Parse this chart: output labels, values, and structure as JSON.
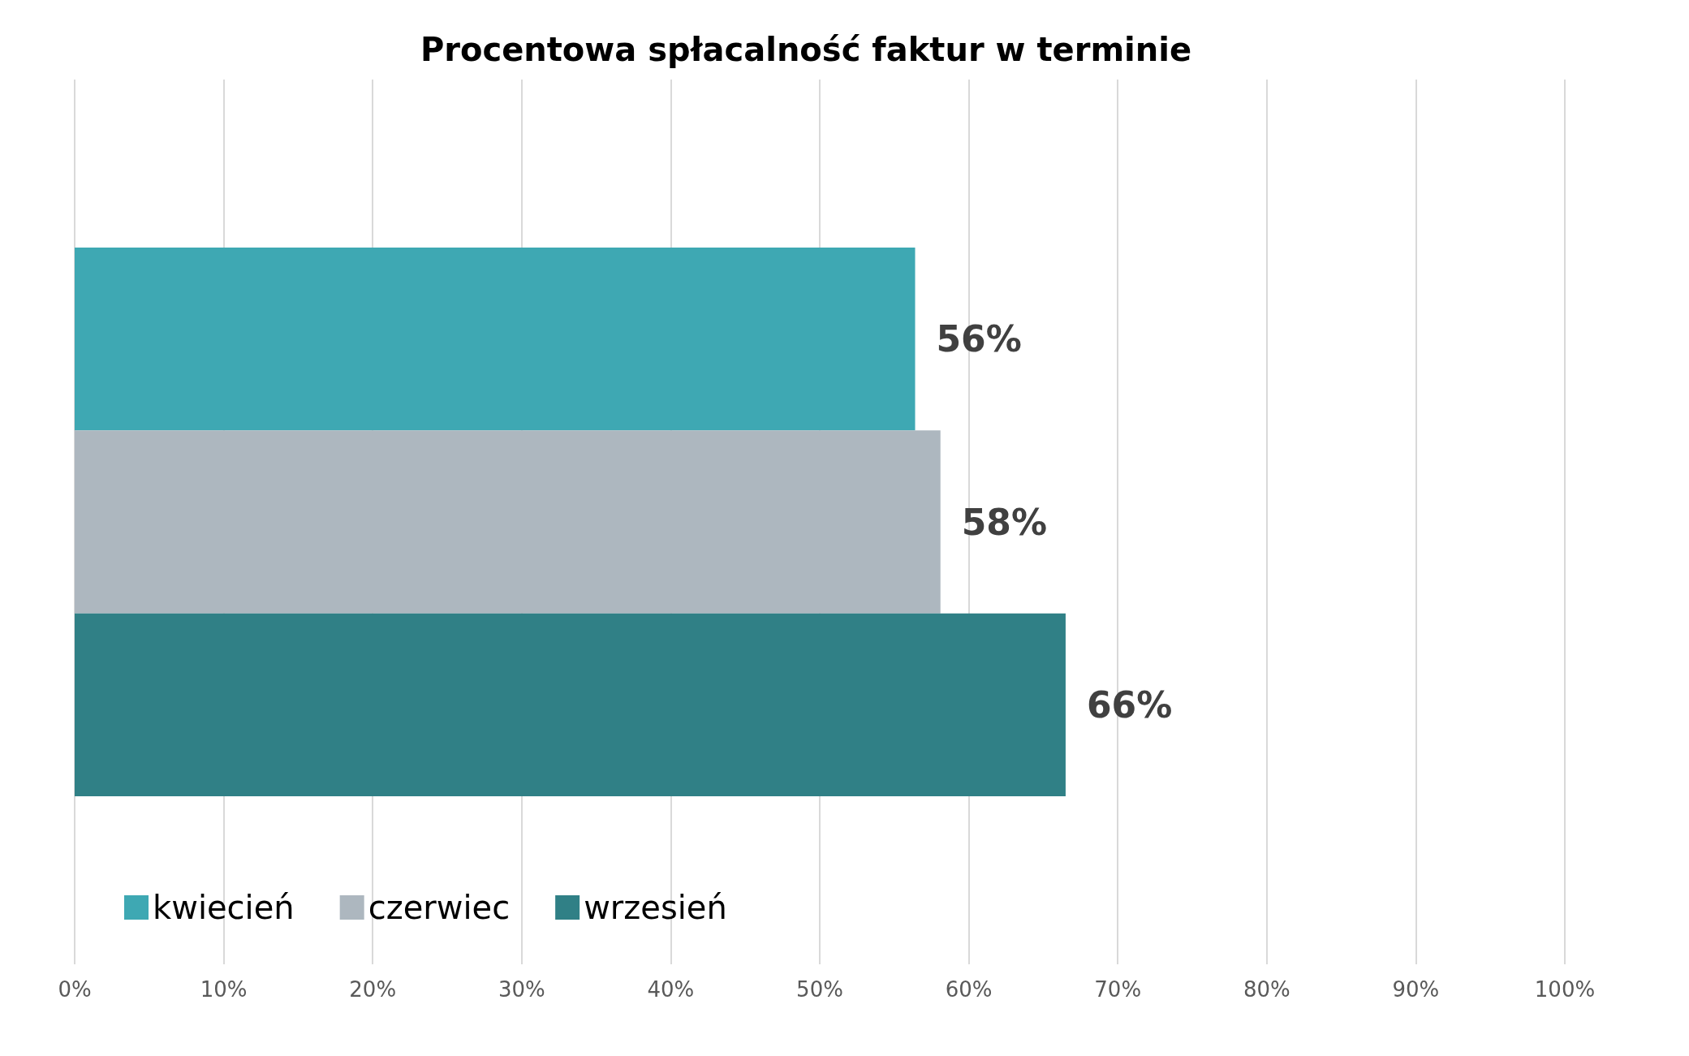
{
  "chart_data": {
    "type": "bar",
    "orientation": "horizontal",
    "title": "Procentowa spłacalność faktur w terminie",
    "categories": [
      null
    ],
    "series": [
      {
        "name": "kwiecień",
        "color": "#3ea8b3",
        "values": [
          56.4
        ],
        "value_labels": [
          "56%"
        ]
      },
      {
        "name": "czerwiec",
        "color": "#adb7bf",
        "values": [
          58.1
        ],
        "value_labels": [
          "58%"
        ]
      },
      {
        "name": "wrzesień",
        "color": "#308086",
        "values": [
          66.5
        ],
        "value_labels": [
          "66%"
        ]
      }
    ],
    "xlim": [
      0,
      100
    ],
    "xticks": [
      {
        "value": 0,
        "label": "0%"
      },
      {
        "value": 10,
        "label": "10%"
      },
      {
        "value": 20,
        "label": "20%"
      },
      {
        "value": 30,
        "label": "30%"
      },
      {
        "value": 40,
        "label": "40%"
      },
      {
        "value": 50,
        "label": "50%"
      },
      {
        "value": 60,
        "label": "60%"
      },
      {
        "value": 70,
        "label": "70%"
      },
      {
        "value": 80,
        "label": "80%"
      },
      {
        "value": 90,
        "label": "90%"
      },
      {
        "value": 100,
        "label": "100%"
      }
    ],
    "grid": "x",
    "legend": "bottom left"
  }
}
